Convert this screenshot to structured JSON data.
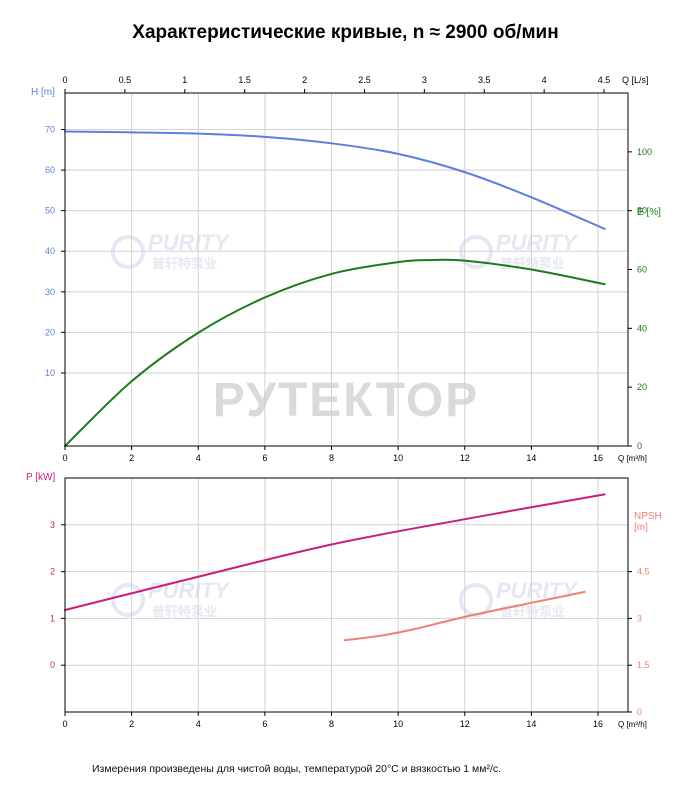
{
  "title": "Характеристические кривые, n ≈ 2900 об/мин",
  "footnote": "Измерения произведены для чистой воды, температурой 20°C и вязкостью 1 мм²/с.",
  "watermark": {
    "main": "РУТЕКТОР",
    "logo_latin": "PURITY",
    "logo_cn": "普轩特泵业"
  },
  "colors": {
    "H": "#5b7fe0",
    "E": "#1e7a1e",
    "P": "#c81e7e",
    "NPSH": "#f08070",
    "grid": "#d2d2d2",
    "axis": "#000000"
  },
  "chart_data": [
    {
      "type": "line",
      "name": "upper",
      "x_top": {
        "label": "Q [L/s]",
        "range": [
          0,
          4.7
        ],
        "ticks": [
          "0",
          "0.5",
          "1",
          "1.5",
          "2",
          "2.5",
          "3",
          "3.5",
          "4",
          "4.5"
        ]
      },
      "x_bottom": {
        "label": "Q [m³/h]",
        "range": [
          0,
          16.9
        ],
        "ticks": [
          "0",
          "2",
          "4",
          "6",
          "8",
          "10",
          "12",
          "14",
          "16"
        ]
      },
      "y_left": {
        "label": "H [m]",
        "range": [
          -8,
          79
        ],
        "ticks": [
          "10",
          "20",
          "30",
          "40",
          "50",
          "60",
          "70"
        ]
      },
      "y_right": {
        "label": "E [%]",
        "range": [
          0,
          120
        ],
        "ticks": [
          "0",
          "20",
          "40",
          "60",
          "80",
          "100"
        ]
      },
      "grid": true,
      "series": [
        {
          "key": "H",
          "axis": "left",
          "x": [
            0,
            2,
            4,
            6,
            8,
            10,
            12,
            14,
            16.2
          ],
          "y": [
            69.5,
            69.3,
            69,
            68.2,
            66.6,
            64,
            59.5,
            53.3,
            45.5
          ]
        },
        {
          "key": "E",
          "axis": "right",
          "x": [
            0,
            2,
            4,
            6,
            8,
            10,
            11,
            12,
            14,
            16.2
          ],
          "y": [
            0,
            22,
            38.5,
            50.5,
            58.5,
            62.5,
            63.2,
            63,
            60,
            55
          ]
        }
      ]
    },
    {
      "type": "line",
      "name": "lower",
      "x_bottom": {
        "label": "Q [m³/h]",
        "range": [
          0,
          16.9
        ],
        "ticks": [
          "0",
          "2",
          "4",
          "6",
          "8",
          "10",
          "12",
          "14",
          "16"
        ]
      },
      "y_left": {
        "label": "P [kW]",
        "range": [
          -1.0,
          4.0
        ],
        "ticks": [
          "0",
          "1",
          "2",
          "3"
        ]
      },
      "y_right": {
        "label": "NPSH [m]",
        "range": [
          0,
          7.5
        ],
        "ticks": [
          "0",
          "1.5",
          "3",
          "4.5"
        ]
      },
      "grid": true,
      "series": [
        {
          "key": "P",
          "axis": "left",
          "x": [
            0,
            4,
            8,
            12,
            16.2
          ],
          "y": [
            1.18,
            1.89,
            2.58,
            3.12,
            3.65
          ]
        },
        {
          "key": "NPSH",
          "axis": "right",
          "x": [
            8.4,
            9.5,
            10.5,
            12,
            14,
            15.6
          ],
          "y": [
            2.3,
            2.45,
            2.66,
            3.05,
            3.5,
            3.85
          ]
        }
      ]
    }
  ]
}
